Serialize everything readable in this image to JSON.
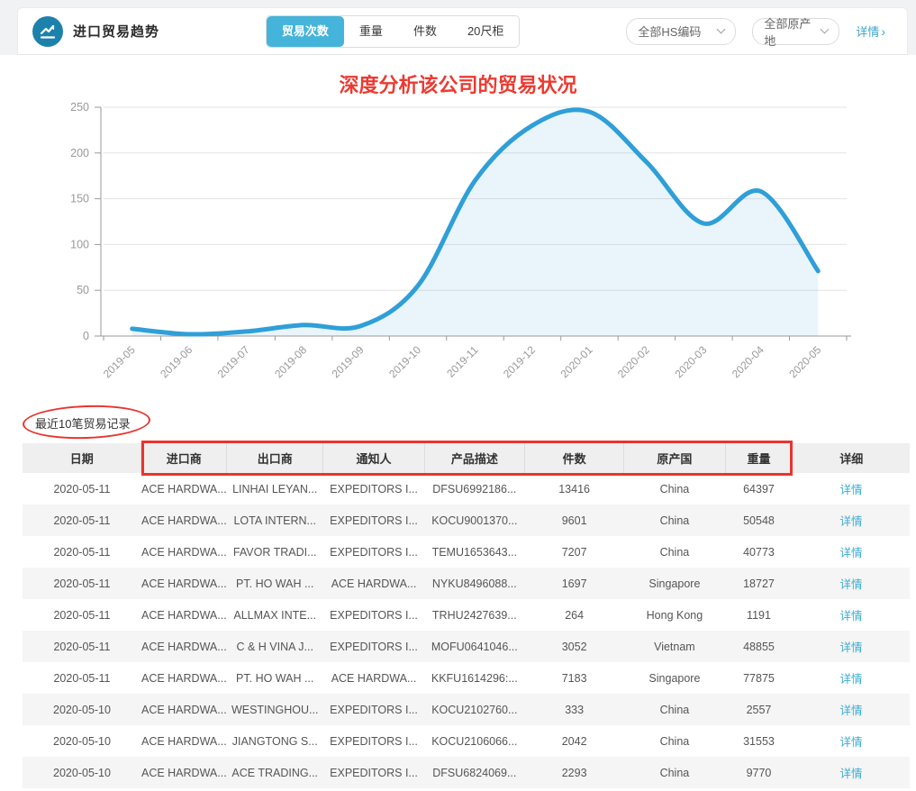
{
  "header": {
    "title": "进口贸易趋势",
    "icon": "trend-line-icon",
    "tabs": [
      {
        "label": "贸易次数",
        "active": true
      },
      {
        "label": "重量",
        "active": false
      },
      {
        "label": "件数",
        "active": false
      },
      {
        "label": "20尺柜",
        "active": false
      }
    ],
    "filters": [
      {
        "label": "全部HS编码"
      },
      {
        "label": "全部原产地"
      }
    ],
    "detail_link": "详情",
    "detail_arrow": "›"
  },
  "annotations": {
    "chart_title": "深度分析该公司的贸易状况",
    "red_color": "#e8352e"
  },
  "chart_data": {
    "type": "area",
    "x": [
      "2019-05",
      "2019-06",
      "2019-07",
      "2019-08",
      "2019-09",
      "2019-10",
      "2019-11",
      "2019-12",
      "2020-01",
      "2020-02",
      "2020-03",
      "2020-04",
      "2020-05"
    ],
    "series": [
      {
        "name": "贸易次数",
        "values": [
          8,
          2,
          5,
          12,
          11,
          55,
          170,
          230,
          245,
          190,
          123,
          158,
          71
        ]
      }
    ],
    "ylim": [
      0,
      250
    ],
    "yticks": [
      0,
      50,
      100,
      150,
      200,
      250
    ],
    "xlabel": "",
    "ylabel": "",
    "grid": true,
    "legend_position": "none",
    "line_color": "#2f9fd8",
    "area_color": "rgba(47,159,216,0.10)"
  },
  "table": {
    "section_title": "最近10笔贸易记录",
    "columns": [
      "日期",
      "进口商",
      "出口商",
      "通知人",
      "产品描述",
      "件数",
      "原产国",
      "重量",
      "详细"
    ],
    "detail_label": "详情",
    "rows": [
      [
        "2020-05-11",
        "ACE HARDWA...",
        "LINHAI LEYAN...",
        "EXPEDITORS I...",
        "DFSU6992186...",
        "13416",
        "China",
        "64397"
      ],
      [
        "2020-05-11",
        "ACE HARDWA...",
        "LOTA INTERN...",
        "EXPEDITORS I...",
        "KOCU9001370...",
        "9601",
        "China",
        "50548"
      ],
      [
        "2020-05-11",
        "ACE HARDWA...",
        "FAVOR TRADI...",
        "EXPEDITORS I...",
        "TEMU1653643...",
        "7207",
        "China",
        "40773"
      ],
      [
        "2020-05-11",
        "ACE HARDWA...",
        "PT. HO WAH ...",
        "ACE HARDWA...",
        "NYKU8496088...",
        "1697",
        "Singapore",
        "18727"
      ],
      [
        "2020-05-11",
        "ACE HARDWA...",
        "ALLMAX INTE...",
        "EXPEDITORS I...",
        "TRHU2427639...",
        "264",
        "Hong Kong",
        "1191"
      ],
      [
        "2020-05-11",
        "ACE HARDWA...",
        "C & H VINA J...",
        "EXPEDITORS I...",
        "MOFU0641046...",
        "3052",
        "Vietnam",
        "48855"
      ],
      [
        "2020-05-11",
        "ACE HARDWA...",
        "PT. HO WAH ...",
        "ACE HARDWA...",
        "KKFU1614296:...",
        "7183",
        "Singapore",
        "77875"
      ],
      [
        "2020-05-10",
        "ACE HARDWA...",
        "WESTINGHOU...",
        "EXPEDITORS I...",
        "KOCU2102760...",
        "333",
        "China",
        "2557"
      ],
      [
        "2020-05-10",
        "ACE HARDWA...",
        "JIANGTONG S...",
        "EXPEDITORS I...",
        "KOCU2106066...",
        "2042",
        "China",
        "31553"
      ],
      [
        "2020-05-10",
        "ACE HARDWA...",
        "ACE TRADING...",
        "EXPEDITORS I...",
        "DFSU6824069...",
        "2293",
        "China",
        "9770"
      ]
    ]
  }
}
